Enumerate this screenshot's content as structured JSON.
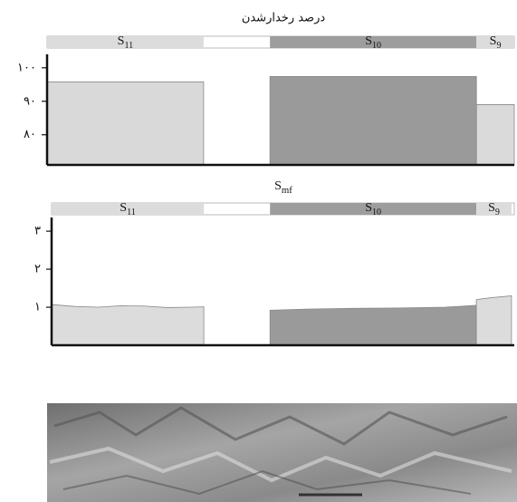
{
  "chart_data": [
    {
      "type": "area",
      "title": "درصد رخدارشدن",
      "xlim": [
        0,
        100
      ],
      "ylim": [
        71,
        104
      ],
      "yticks": [
        {
          "value": 100,
          "label": "۱۰۰"
        },
        {
          "value": 90,
          "label": "۹۰"
        },
        {
          "value": 80,
          "label": "۸۰"
        }
      ],
      "grid": false,
      "series": [
        {
          "label": {
            "text": "S",
            "sub": "11"
          },
          "color": "#d9d9d9",
          "strip_color": "#dcdcdc",
          "x": [
            0,
            33.5
          ],
          "values": [
            95.8,
            95.8
          ]
        },
        {
          "label": {
            "text": "S",
            "sub": "10"
          },
          "color": "#9a9a9a",
          "strip_color": "#9d9d9d",
          "x": [
            47.7,
            91.9
          ],
          "values": [
            97.4,
            97.4
          ]
        },
        {
          "label": {
            "text": "S",
            "sub": "9"
          },
          "color": "#dadada",
          "strip_color": "#dcdcdc",
          "x": [
            91.9,
            100
          ],
          "values": [
            89,
            89
          ]
        }
      ]
    },
    {
      "type": "area",
      "title": {
        "text": "S",
        "sub": "mf"
      },
      "xlim": [
        0,
        100
      ],
      "ylim": [
        0,
        3.36
      ],
      "yticks": [
        {
          "value": 3,
          "label": "۳"
        },
        {
          "value": 2,
          "label": "۲"
        },
        {
          "value": 1,
          "label": "۱"
        }
      ],
      "grid": false,
      "series": [
        {
          "label": {
            "text": "S",
            "sub": "11"
          },
          "color": "#dcdcdc",
          "strip_color": "#dcdcdc",
          "x": [
            0,
            5,
            10,
            15,
            20,
            25,
            30,
            32.9
          ],
          "values": [
            1.07,
            1.02,
            1.0,
            1.04,
            1.03,
            0.99,
            1.0,
            1.01
          ]
        },
        {
          "label": {
            "text": "S",
            "sub": "10"
          },
          "color": "#9a9a9a",
          "strip_color": "#9d9d9d",
          "x": [
            47.2,
            55,
            65,
            75,
            85,
            91.8
          ],
          "values": [
            0.92,
            0.95,
            0.97,
            0.98,
            1.0,
            1.05
          ]
        },
        {
          "label": {
            "text": "S",
            "sub": "9"
          },
          "color": "#dcdcdc",
          "strip_color": "#dcdcdc",
          "x": [
            91.8,
            95,
            99.4
          ],
          "values": [
            1.2,
            1.25,
            1.3
          ]
        }
      ]
    }
  ]
}
